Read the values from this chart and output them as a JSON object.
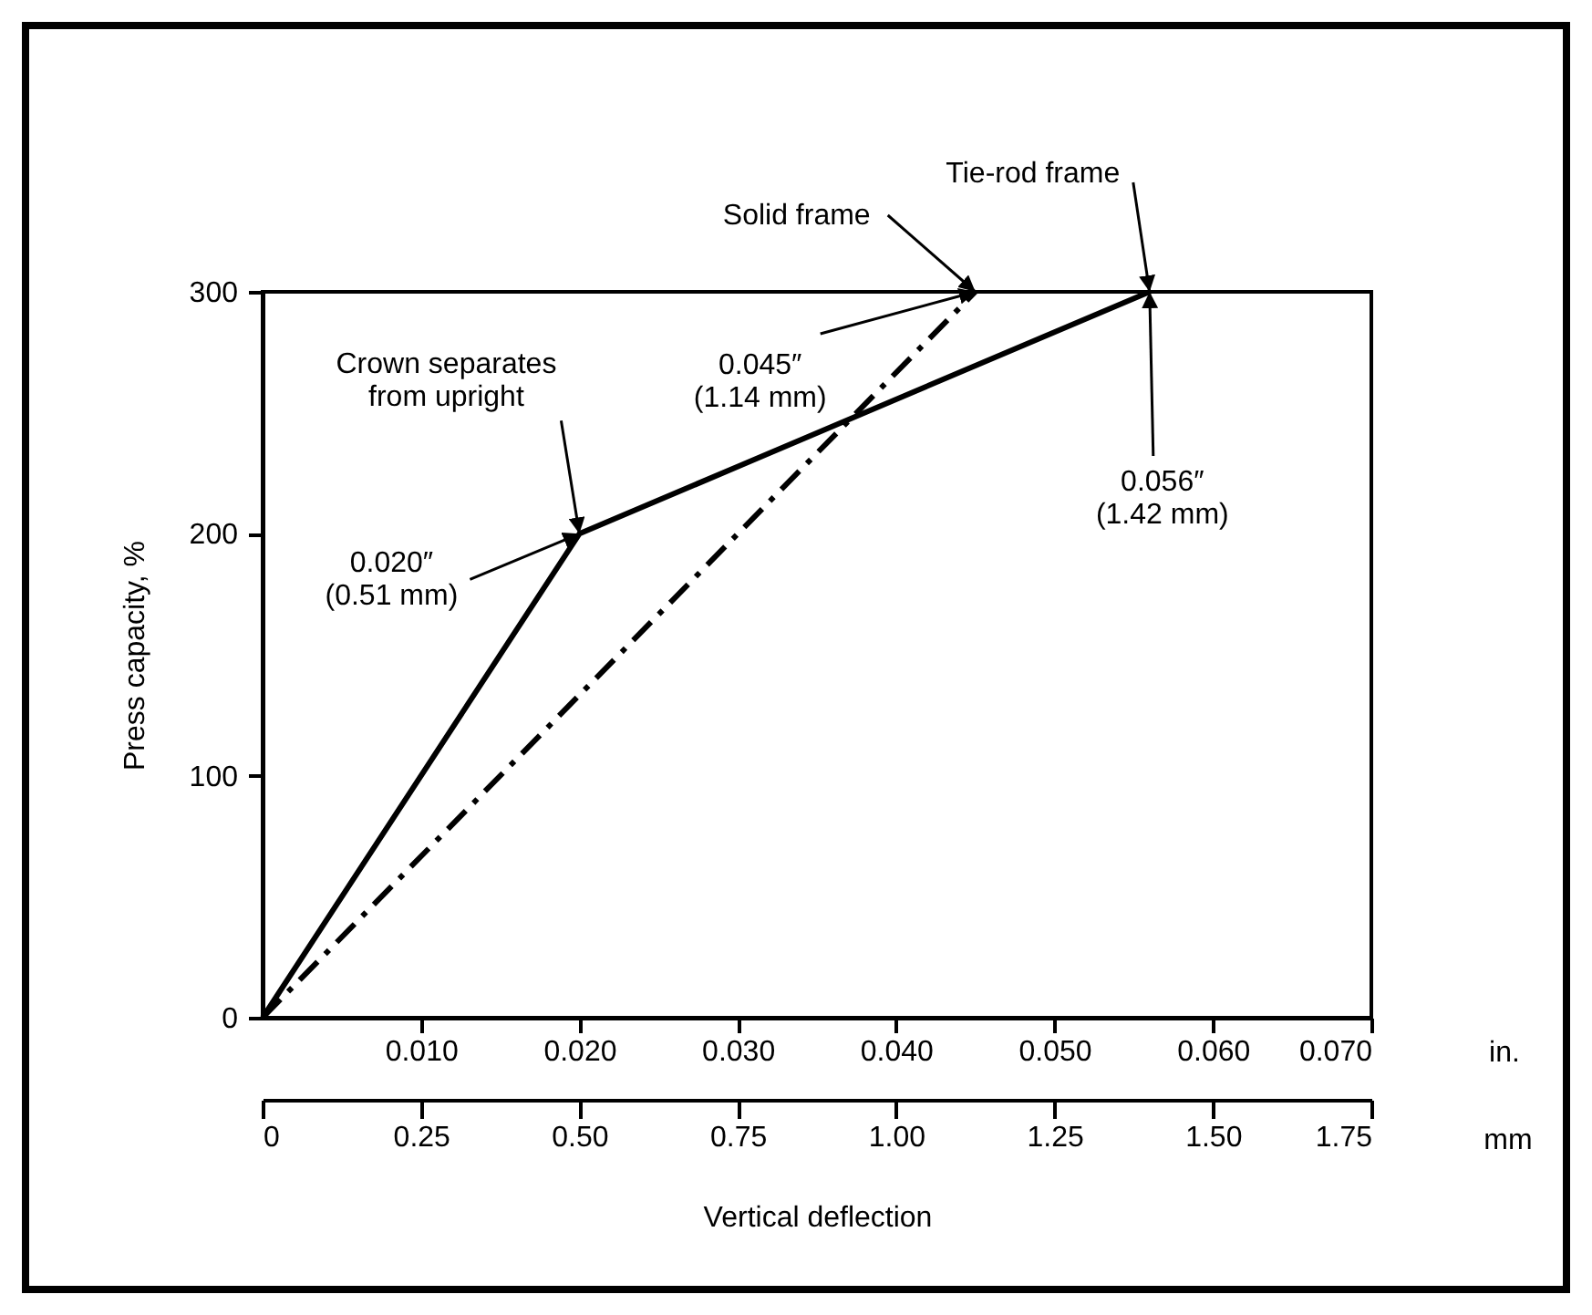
{
  "chart_data": {
    "type": "line",
    "xlabel": "Vertical deflection",
    "ylabel": "Press capacity, %",
    "series": [
      {
        "name": "Tie-rod frame",
        "color": "#000000",
        "line_style": "solid",
        "x": [
          0,
          0.02,
          0.056
        ],
        "values": [
          0,
          200,
          300
        ]
      },
      {
        "name": "Solid frame",
        "color": "#000000",
        "line_style": "dashed",
        "x": [
          0,
          0.045
        ],
        "values": [
          0,
          300
        ]
      }
    ],
    "xlim": [
      0,
      0.07
    ],
    "xticks": [
      {
        "value": 0.01,
        "label": "0.010"
      },
      {
        "value": 0.02,
        "label": "0.020"
      },
      {
        "value": 0.03,
        "label": "0.030"
      },
      {
        "value": 0.04,
        "label": "0.040"
      },
      {
        "value": 0.05,
        "label": "0.050"
      },
      {
        "value": 0.06,
        "label": "0.060"
      },
      {
        "value": 0.07,
        "label": "0.070"
      }
    ],
    "x2lim": [
      0,
      1.75
    ],
    "x2ticks": [
      0,
      0.25,
      {
        "value": 0.5,
        "label": "0.50"
      },
      0.75,
      {
        "value": 1,
        "label": "1.00"
      },
      1.25,
      {
        "value": 1.5,
        "label": "1.50"
      },
      1.75
    ],
    "ylim": [
      0,
      300
    ],
    "yticks": [
      0,
      100,
      200,
      300
    ],
    "grid": false,
    "legend": false,
    "marker": "none",
    "annotations": [
      {
        "text": "Crown separates\nfrom upright",
        "x": 0.02,
        "y": 200
      },
      {
        "text": "0.020″\n(0.51 mm)",
        "x": 0.02,
        "y": 200
      },
      {
        "text": "0.045″\n(1.14 mm)",
        "x": 0.045,
        "y": 300
      },
      {
        "text": "0.056″\n(1.42 mm)",
        "x": 0.056,
        "y": 300
      },
      "in.",
      "mm"
    ]
  }
}
